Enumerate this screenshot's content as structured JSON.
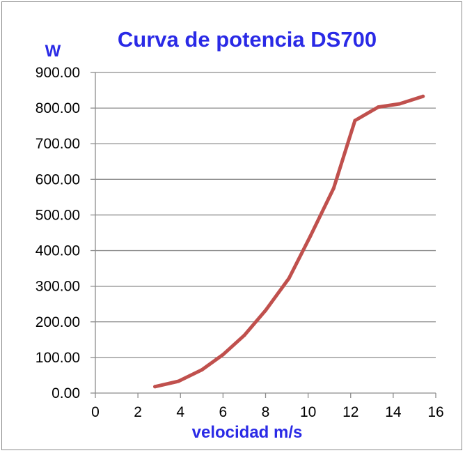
{
  "chart_data": {
    "type": "line",
    "title": "Curva de potencia DS700",
    "xlabel": "velocidad m/s",
    "ylabel": "W",
    "xlim": [
      0,
      16
    ],
    "ylim": [
      0,
      900
    ],
    "x_ticks": [
      "0",
      "2",
      "4",
      "6",
      "8",
      "10",
      "12",
      "14",
      "16"
    ],
    "y_ticks": [
      "0.00",
      "100.00",
      "200.00",
      "300.00",
      "400.00",
      "500.00",
      "600.00",
      "700.00",
      "800.00",
      "900.00"
    ],
    "grid": true,
    "series": [
      {
        "color": "#c0504d",
        "x": [
          2.8,
          3.9,
          5.0,
          6.0,
          7.0,
          8.0,
          9.1,
          10.1,
          11.2,
          12.2,
          13.3,
          14.3,
          15.4
        ],
        "y": [
          18,
          33,
          65,
          108,
          162,
          232,
          322,
          440,
          575,
          765,
          803,
          812,
          833
        ]
      }
    ]
  }
}
